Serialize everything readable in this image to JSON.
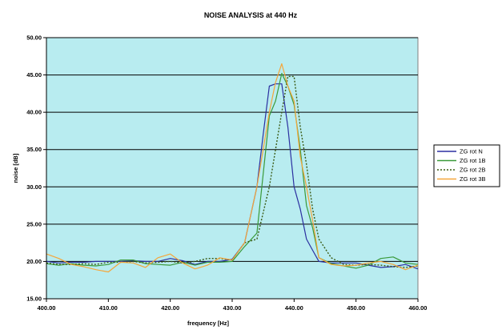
{
  "chart_data": {
    "type": "line",
    "title": "NOISE ANALYSIS at  440 Hz",
    "xlabel": "frequency [Hz]",
    "ylabel": "noise [dB]",
    "xlim": [
      400,
      460
    ],
    "ylim": [
      15,
      50
    ],
    "x_ticks": [
      "400.00",
      "410.00",
      "420.00",
      "430.00",
      "440.00",
      "450.00",
      "460.00"
    ],
    "y_ticks": [
      "15.00",
      "20.00",
      "25.00",
      "30.00",
      "35.00",
      "40.00",
      "45.00",
      "50.00"
    ],
    "grid": "horizontal",
    "plot_background": "#b8ecf0",
    "legend_position": "right",
    "series": [
      {
        "name": "ZG rot  N",
        "color": "#2b2fa0",
        "dash": "solid",
        "x": [
          400,
          402,
          404,
          406,
          408,
          410,
          412,
          414,
          416,
          418,
          420,
          422,
          424,
          426,
          428,
          430,
          432,
          434,
          435,
          436,
          437,
          438,
          439,
          440,
          441,
          442,
          443,
          444,
          446,
          448,
          450,
          452,
          454,
          456,
          458,
          460
        ],
        "y": [
          20.0,
          19.8,
          19.9,
          19.9,
          20.0,
          20.0,
          20.0,
          20.1,
          20.0,
          20.0,
          20.4,
          20.1,
          19.6,
          20.0,
          20.0,
          20.3,
          22.5,
          30.0,
          37.0,
          43.5,
          43.8,
          43.8,
          38.0,
          30.0,
          27.0,
          23.0,
          21.5,
          20.0,
          19.8,
          19.8,
          19.8,
          19.5,
          19.2,
          19.3,
          19.6,
          19.0
        ]
      },
      {
        "name": "ZG rot  1B",
        "color": "#3a9a3a",
        "dash": "solid",
        "x": [
          400,
          402,
          404,
          406,
          408,
          410,
          412,
          414,
          416,
          418,
          420,
          422,
          424,
          426,
          428,
          430,
          432,
          434,
          436,
          437,
          438,
          439,
          440,
          441,
          442,
          443,
          444,
          446,
          448,
          450,
          452,
          454,
          456,
          458,
          460
        ],
        "y": [
          19.7,
          19.5,
          19.7,
          19.5,
          19.4,
          19.6,
          20.2,
          20.2,
          19.7,
          19.6,
          19.5,
          19.9,
          19.5,
          19.9,
          19.9,
          20.0,
          22.0,
          23.8,
          39.5,
          41.5,
          45.2,
          43.5,
          41.0,
          35.0,
          27.5,
          24.5,
          20.5,
          19.7,
          19.4,
          19.1,
          19.5,
          20.4,
          20.6,
          19.8,
          19.6
        ]
      },
      {
        "name": "ZG rot  2B",
        "color": "#3a5a14",
        "dash": "dotted",
        "x": [
          400,
          402,
          404,
          406,
          408,
          410,
          412,
          414,
          416,
          418,
          420,
          422,
          424,
          426,
          428,
          430,
          432,
          434,
          436,
          438,
          439,
          440,
          441,
          442,
          443,
          444,
          446,
          448,
          450,
          452,
          454,
          456,
          458,
          460
        ],
        "y": [
          19.8,
          19.6,
          19.6,
          19.7,
          19.6,
          19.9,
          19.9,
          20.0,
          19.8,
          19.9,
          20.0,
          19.8,
          20.0,
          20.4,
          20.4,
          20.2,
          22.5,
          23.0,
          30.0,
          40.0,
          44.8,
          44.8,
          38.0,
          33.0,
          27.0,
          23.0,
          20.5,
          19.6,
          19.5,
          19.6,
          19.5,
          19.3,
          19.2,
          19.4
        ]
      },
      {
        "name": "ZG rot  3B",
        "color": "#f5a63a",
        "dash": "solid",
        "x": [
          400,
          402,
          404,
          406,
          408,
          410,
          412,
          414,
          416,
          418,
          420,
          422,
          424,
          426,
          428,
          430,
          432,
          434,
          436,
          437,
          438,
          439,
          440,
          441,
          442,
          443,
          444,
          446,
          448,
          450,
          452,
          454,
          456,
          458,
          460
        ],
        "y": [
          21.0,
          20.4,
          19.6,
          19.3,
          18.9,
          18.6,
          19.9,
          19.8,
          19.2,
          20.5,
          21.0,
          19.8,
          19.0,
          19.5,
          20.5,
          20.2,
          22.5,
          30.0,
          40.0,
          44.0,
          46.5,
          43.5,
          41.5,
          34.0,
          30.0,
          25.5,
          20.5,
          19.6,
          19.4,
          19.5,
          19.8,
          20.0,
          19.6,
          18.9,
          19.5
        ]
      }
    ]
  }
}
